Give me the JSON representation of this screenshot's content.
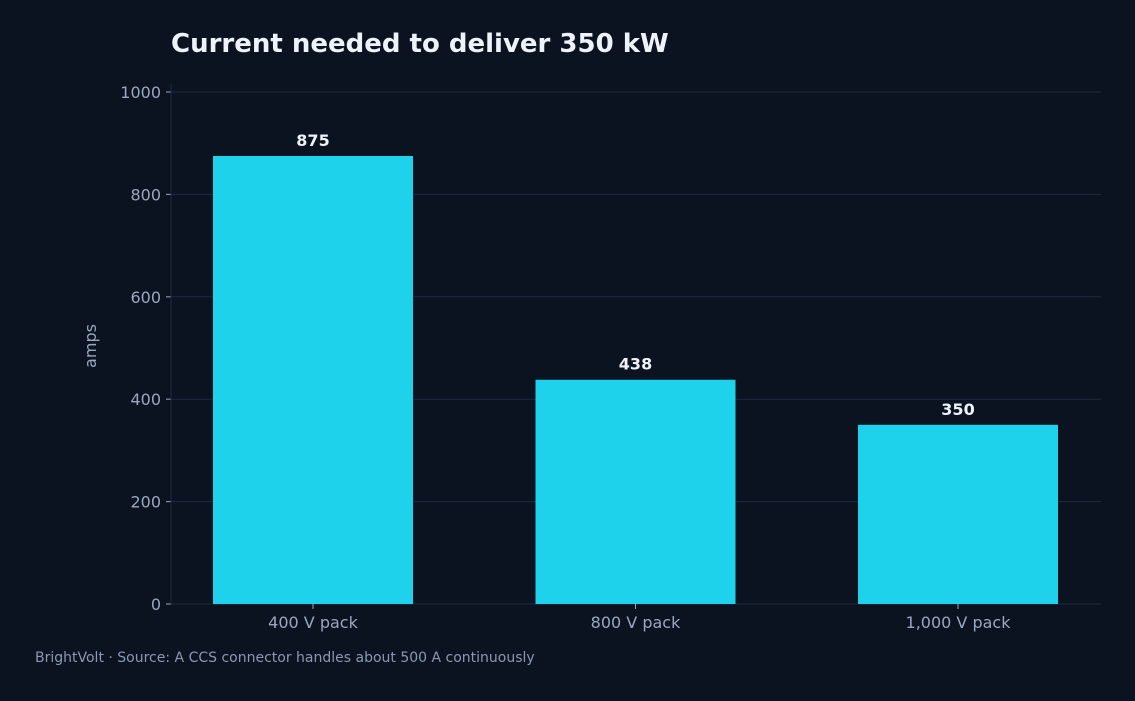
{
  "chart_data": {
    "type": "bar",
    "title": "Current needed to deliver 350 kW",
    "xlabel": "",
    "ylabel": "amps",
    "categories": [
      "400 V pack",
      "800 V pack",
      "1,000 V pack"
    ],
    "values": [
      875,
      438,
      350
    ],
    "data_labels": [
      "875",
      "438",
      "350"
    ],
    "ylim": [
      0,
      1000
    ],
    "yticks": [
      0,
      200,
      400,
      600,
      800,
      1000
    ],
    "ytick_labels": [
      "0",
      "200",
      "400",
      "600",
      "800",
      "1000"
    ],
    "grid": "horizontal",
    "colors": {
      "background": "#0b1320",
      "bar": "#1fd2ec",
      "grid": "#1e2b40",
      "text": "#eef2fa",
      "muted_text": "#9aa7bf"
    }
  },
  "footer": {
    "note": "BrightVolt  ·  Source: A CCS connector handles about 500 A continuously"
  }
}
